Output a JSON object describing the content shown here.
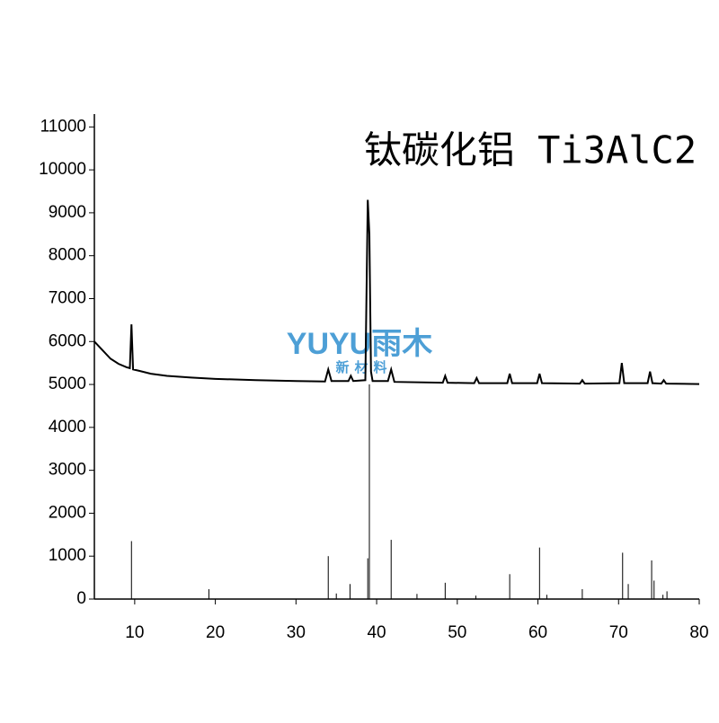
{
  "chart_data": {
    "type": "line",
    "title": "钛碳化铝 Ti3AlC2",
    "watermark": {
      "brand": "YUYU雨木",
      "tagline": "新材料"
    },
    "xlim": [
      5,
      80
    ],
    "xticks": [
      10,
      20,
      30,
      40,
      50,
      60,
      70,
      80
    ],
    "ylim": [
      0,
      11300
    ],
    "yticks": [
      0,
      1000,
      2000,
      3000,
      4000,
      5000,
      6000,
      7000,
      8000,
      9000,
      10000,
      11000
    ],
    "series": [
      {
        "type": "line",
        "color": "#000000",
        "x": [
          5,
          6,
          7,
          8,
          9,
          9.4,
          9.6,
          9.8,
          10.5,
          12,
          14,
          17,
          20,
          25,
          30,
          33.6,
          34,
          34.4,
          36.5,
          36.8,
          37.1,
          38.6,
          38.9,
          39.1,
          39.3,
          39.5,
          41.4,
          41.8,
          42.2,
          48.2,
          48.5,
          48.8,
          52.1,
          52.4,
          52.7,
          56.2,
          56.5,
          56.8,
          59.9,
          60.2,
          60.5,
          65.2,
          65.5,
          65.8,
          70.1,
          70.4,
          70.7,
          73.6,
          73.9,
          74.2,
          75.3,
          75.6,
          75.9,
          80
        ],
        "values": [
          6000,
          5800,
          5600,
          5480,
          5400,
          5380,
          6400,
          5350,
          5320,
          5250,
          5200,
          5160,
          5130,
          5100,
          5080,
          5070,
          5350,
          5080,
          5080,
          5200,
          5080,
          5100,
          9300,
          8500,
          5300,
          5080,
          5080,
          5350,
          5060,
          5040,
          5200,
          5040,
          5030,
          5150,
          5030,
          5030,
          5250,
          5030,
          5030,
          5250,
          5030,
          5020,
          5100,
          5020,
          5030,
          5500,
          5030,
          5030,
          5300,
          5030,
          5020,
          5100,
          5020,
          5010
        ]
      },
      {
        "type": "stick",
        "color": "#000000",
        "x": [
          9.6,
          19.2,
          34,
          35,
          36.7,
          38.9,
          39.1,
          41.8,
          45,
          48.5,
          52.3,
          56.5,
          60.2,
          61.1,
          65.5,
          70.5,
          71.2,
          74.1,
          74.4,
          75.5,
          76
        ],
        "values": [
          1350,
          230,
          1000,
          130,
          350,
          950,
          5000,
          1380,
          120,
          380,
          80,
          580,
          1200,
          100,
          230,
          1080,
          350,
          900,
          430,
          100,
          180
        ]
      }
    ]
  }
}
